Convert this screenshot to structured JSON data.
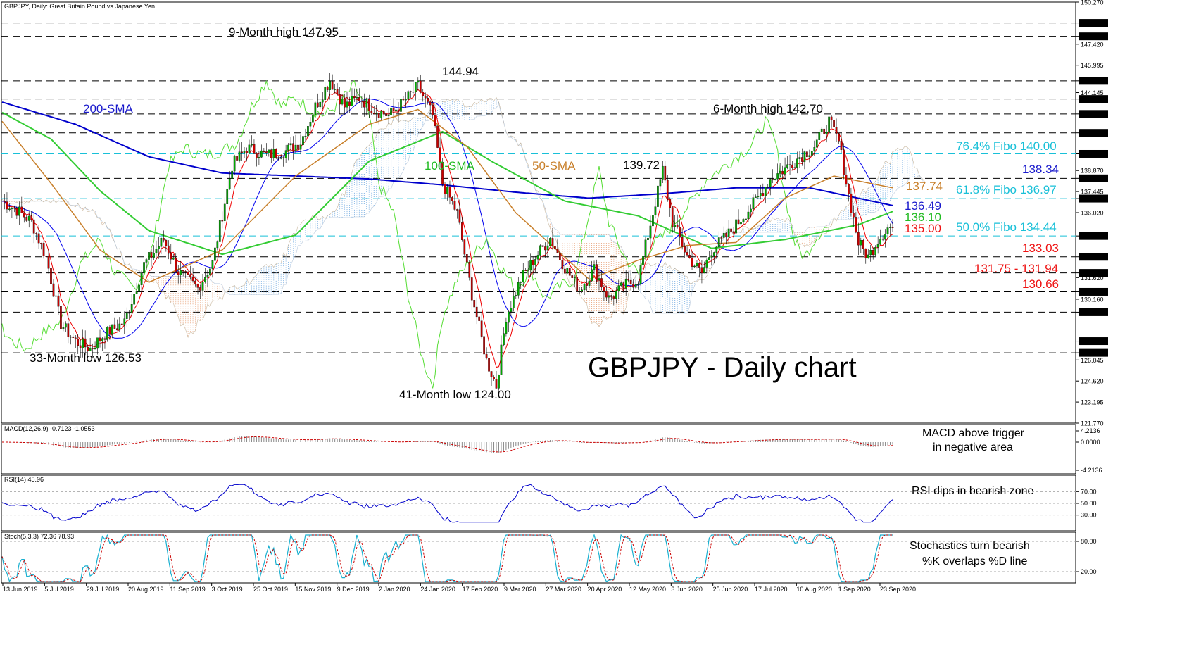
{
  "header": {
    "symbol_info": "GBPJPY, Daily:",
    "description": "Great Britain Pound vs Japanese Yen"
  },
  "main_title": "GBPJPY - Daily chart",
  "colors": {
    "candle_up": "#00aa00",
    "candle_down": "#cc0000",
    "sma200": "#0000cc",
    "sma100": "#33cc33",
    "sma50": "#c87f2a",
    "tenkan": "#ee0000",
    "kijun": "#0000ee",
    "chikou": "#55dd33",
    "cloud_bull": "#6fa9e0",
    "cloud_bear": "#e8a37a",
    "fibo": "#19c0d8",
    "macd_signal": "#cc0000",
    "rsi": "#0000cc",
    "stoch_k": "#19b0d0",
    "stoch_d": "#cc0000"
  },
  "annotations": {
    "high_9m": "9-Month high 147.95",
    "high_144": "144.94",
    "sma200_label": "200-SMA",
    "sma100_label": "100-SMA",
    "sma50_label": "50-SMA",
    "high_6m": "6-Month high 142.70",
    "high_139": "139.72",
    "low_33m": "33-Month low 126.53",
    "low_41m": "41-Month low 124.00",
    "fibo_764": "76.4% Fibo 140.00",
    "fibo_618": "61.8% Fibo 136.97",
    "fibo_500": "50.0% Fibo 134.44",
    "val_13834": "138.34",
    "val_13774": "137.74",
    "val_13649": "136.49",
    "val_13610": "136.10",
    "val_13500": "135.00",
    "val_13303": "133.03",
    "val_13175": "131.75 - 131.94",
    "val_13066": "130.66",
    "macd_note_1": "MACD above trigger",
    "macd_note_2": "in negative area",
    "rsi_note": "RSI dips in bearish zone",
    "stoch_note_1": "Stochastics turn bearish",
    "stoch_note_2": "%K overlaps %D line"
  },
  "panels": {
    "macd_title": "MACD(12,26,9) -0.7123 -1.0553",
    "rsi_title": "RSI(14) 45.96",
    "stoch_title": "Stoch(5,3,3) 72.36 78.93"
  },
  "chart_data": {
    "type": "candlestick",
    "price_axis": {
      "ticks": [
        "150.270",
        "148.860",
        "147.950",
        "147.420",
        "145.995",
        "144.940",
        "144.145",
        "143.710",
        "142.700",
        "141.420",
        "140.000",
        "138.870",
        "138.340",
        "137.445",
        "136.970",
        "136.020",
        "134.440",
        "133.030",
        "131.940",
        "131.620",
        "130.660",
        "130.160",
        "129.280",
        "127.320",
        "126.530",
        "126.045",
        "124.620",
        "123.195",
        "121.770"
      ],
      "ylim": [
        121.77,
        150.27
      ]
    },
    "highlighted_levels": [
      "148.860",
      "147.950",
      "144.940",
      "143.710",
      "142.700",
      "141.420",
      "140.000",
      "138.340",
      "136.970",
      "134.440",
      "133.030",
      "131.940",
      "130.660",
      "129.280",
      "127.320",
      "126.530"
    ],
    "x_axis_labels": [
      "13 Jun 2019",
      "5 Jul 2019",
      "29 Jul 2019",
      "20 Aug 2019",
      "11 Sep 2019",
      "3 Oct 2019",
      "25 Oct 2019",
      "15 Nov 2019",
      "9 Dec 2019",
      "2 Jan 2020",
      "24 Jan 2020",
      "17 Feb 2020",
      "9 Mar 2020",
      "27 Mar 2020",
      "20 Apr 2020",
      "12 May 2020",
      "3 Jun 2020",
      "25 Jun 2020",
      "17 Jul 2020",
      "10 Aug 2020",
      "1 Sep 2020",
      "23 Sep 2020"
    ],
    "price_path": [
      [
        0,
        136.8
      ],
      [
        6,
        136.2
      ],
      [
        12,
        135.4
      ],
      [
        18,
        133.0
      ],
      [
        24,
        128.5
      ],
      [
        30,
        127.3
      ],
      [
        36,
        126.8
      ],
      [
        42,
        127.8
      ],
      [
        50,
        128.6
      ],
      [
        58,
        132.5
      ],
      [
        66,
        134.2
      ],
      [
        72,
        132.0
      ],
      [
        80,
        130.9
      ],
      [
        86,
        132.6
      ],
      [
        94,
        139.2
      ],
      [
        100,
        140.4
      ],
      [
        108,
        139.9
      ],
      [
        116,
        140.2
      ],
      [
        122,
        140.8
      ],
      [
        128,
        143.2
      ],
      [
        134,
        145.0
      ],
      [
        140,
        143.2
      ],
      [
        146,
        143.8
      ],
      [
        152,
        143.0
      ],
      [
        158,
        142.6
      ],
      [
        164,
        143.5
      ],
      [
        170,
        144.6
      ],
      [
        176,
        142.6
      ],
      [
        180,
        138.0
      ],
      [
        186,
        136.0
      ],
      [
        192,
        130.5
      ],
      [
        198,
        126.0
      ],
      [
        202,
        124.3
      ],
      [
        206,
        129.0
      ],
      [
        212,
        131.5
      ],
      [
        218,
        133.0
      ],
      [
        224,
        134.3
      ],
      [
        230,
        132.3
      ],
      [
        236,
        130.8
      ],
      [
        242,
        132.2
      ],
      [
        248,
        130.2
      ],
      [
        254,
        131.0
      ],
      [
        260,
        131.5
      ],
      [
        266,
        136.0
      ],
      [
        270,
        138.9
      ],
      [
        274,
        135.4
      ],
      [
        280,
        133.1
      ],
      [
        286,
        131.9
      ],
      [
        290,
        133.5
      ],
      [
        296,
        134.4
      ],
      [
        302,
        135.6
      ],
      [
        308,
        136.8
      ],
      [
        314,
        138.3
      ],
      [
        320,
        139.0
      ],
      [
        326,
        139.8
      ],
      [
        332,
        140.5
      ],
      [
        338,
        142.2
      ],
      [
        342,
        140.8
      ],
      [
        346,
        137.2
      ],
      [
        350,
        134.0
      ],
      [
        354,
        133.0
      ],
      [
        358,
        134.2
      ],
      [
        362,
        135.0
      ],
      [
        364,
        135.0
      ]
    ],
    "sma200": [
      [
        0,
        143.5
      ],
      [
        30,
        142.0
      ],
      [
        60,
        139.8
      ],
      [
        90,
        138.7
      ],
      [
        120,
        138.5
      ],
      [
        150,
        138.3
      ],
      [
        180,
        137.9
      ],
      [
        210,
        137.4
      ],
      [
        240,
        137.0
      ],
      [
        270,
        137.3
      ],
      [
        300,
        137.7
      ],
      [
        330,
        137.7
      ],
      [
        364,
        136.5
      ]
    ],
    "sma100": [
      [
        0,
        142.8
      ],
      [
        20,
        141.0
      ],
      [
        40,
        137.5
      ],
      [
        60,
        134.8
      ],
      [
        90,
        133.2
      ],
      [
        120,
        134.5
      ],
      [
        150,
        139.5
      ],
      [
        180,
        141.5
      ],
      [
        200,
        139.5
      ],
      [
        230,
        136.8
      ],
      [
        260,
        135.8
      ],
      [
        290,
        133.6
      ],
      [
        320,
        134.2
      ],
      [
        350,
        135.2
      ],
      [
        364,
        136.1
      ]
    ],
    "sma50": [
      [
        0,
        142.2
      ],
      [
        20,
        138.0
      ],
      [
        40,
        133.5
      ],
      [
        60,
        131.3
      ],
      [
        90,
        133.5
      ],
      [
        120,
        138.5
      ],
      [
        150,
        142.0
      ],
      [
        170,
        143.0
      ],
      [
        190,
        140.5
      ],
      [
        210,
        136.0
      ],
      [
        240,
        131.5
      ],
      [
        260,
        132.8
      ],
      [
        280,
        133.8
      ],
      [
        300,
        134.0
      ],
      [
        320,
        137.0
      ],
      [
        340,
        138.5
      ],
      [
        364,
        137.7
      ]
    ],
    "rsi_axis": [
      "70.00",
      "50.00",
      "30.00"
    ],
    "macd_axis": [
      "4.2136",
      "0.0000",
      "-4.2136"
    ],
    "stoch_axis": [
      "80.00",
      "20.00"
    ],
    "last_values": {
      "macd": -0.7123,
      "macd_signal": -1.0553,
      "rsi": 45.96,
      "stoch_k": 72.36,
      "stoch_d": 78.93
    }
  }
}
